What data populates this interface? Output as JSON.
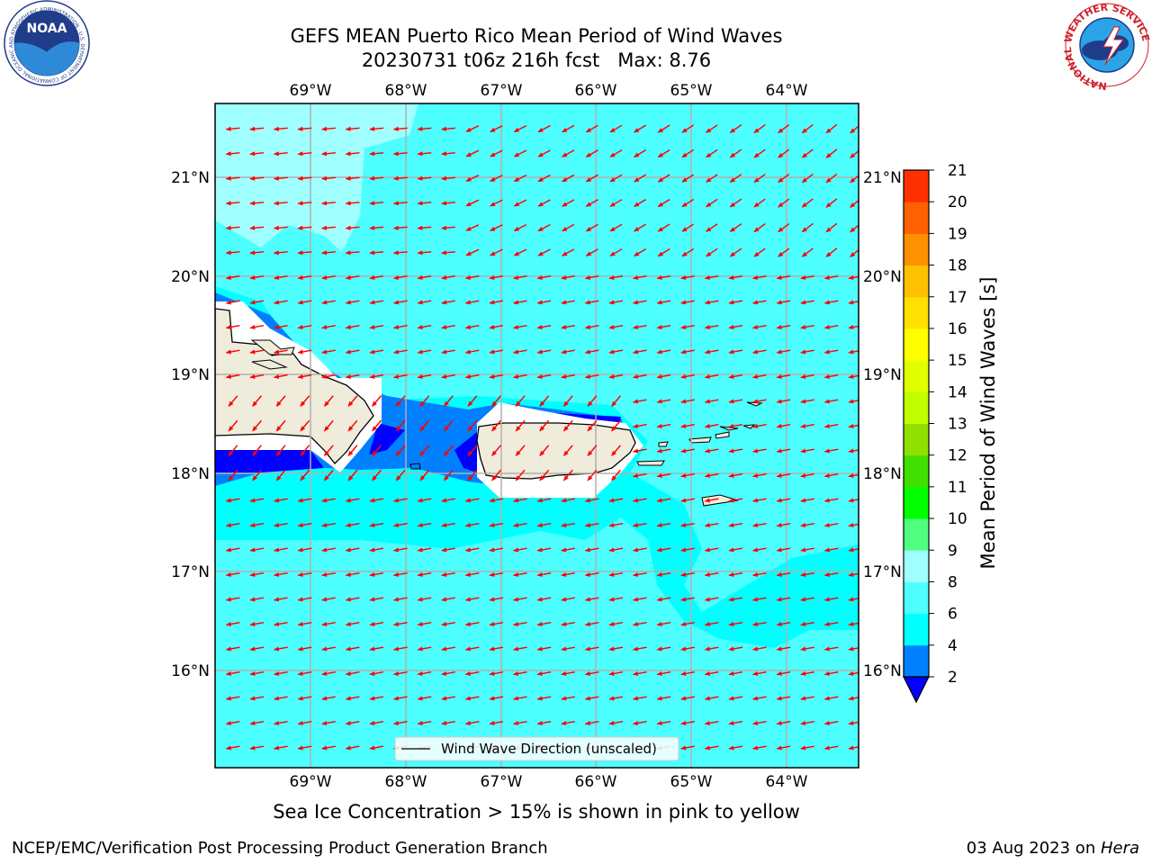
{
  "header": {
    "title_line1": "GEFS MEAN Puerto Rico Mean Period of Wind Waves",
    "title_line2": "20230731 t06z 216h fcst   Max: 8.76"
  },
  "logos": {
    "noaa_text": "NOAA",
    "noaa_ring_text": "NATIONAL OCEANIC AND ATMOSPHERIC ADMINISTRATION · U.S. DEPARTMENT OF COMMERCE",
    "nws_ring_text": "NATIONAL WEATHER SERVICE"
  },
  "map": {
    "lon_labels": [
      "69°W",
      "68°W",
      "67°W",
      "66°W",
      "65°W",
      "64°W"
    ],
    "lat_labels": [
      "21°N",
      "20°N",
      "19°N",
      "18°N",
      "17°N",
      "16°N"
    ],
    "legend_label": "Wind Wave Direction (unscaled)",
    "colors": {
      "ocean_main": "#4dffff",
      "ocean_mid": "#00ffff",
      "ocean_light": "#a0ffff",
      "band_blue": "#0080ff",
      "band_dark": "#0000ff",
      "land": "#efecdc",
      "arrow": "#ff0000"
    }
  },
  "colorbar": {
    "label": "Mean Period of Wind Waves [s]",
    "ticks": [
      "2",
      "4",
      "6",
      "8",
      "9",
      "10",
      "11",
      "12",
      "13",
      "14",
      "15",
      "16",
      "17",
      "18",
      "19",
      "20",
      "21"
    ],
    "colors": [
      "#0080ff",
      "#00ffff",
      "#4dffff",
      "#a0ffff",
      "#50ff80",
      "#00ff00",
      "#40e000",
      "#90e000",
      "#c0ff00",
      "#e0ff00",
      "#ffff00",
      "#ffe000",
      "#ffc000",
      "#ff9000",
      "#ff6000",
      "#ff3000",
      "#ff0000"
    ],
    "under_color": "#0000ff"
  },
  "caption": "Sea Ice Concentration > 15% is shown in pink to yellow",
  "footer": {
    "left": "NCEP/EMC/Verification Post Processing Product Generation Branch",
    "right_prefix": "03 Aug 2023 on ",
    "right_host": "Hera"
  }
}
